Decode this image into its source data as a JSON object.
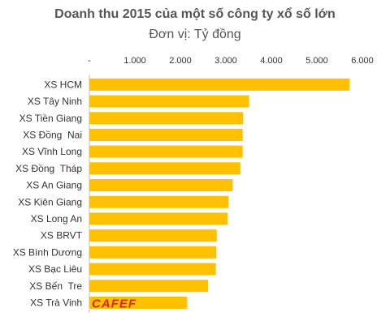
{
  "chart_data": {
    "type": "bar",
    "orientation": "horizontal",
    "title": "Doanh thu 2015 của một số công ty xổ số lớn",
    "subtitle": "Đơn vị: Tỷ đồng",
    "categories": [
      "XS HCM",
      "XS Tây Ninh",
      "XS Tiền Giang",
      "XS Đồng  Nai",
      "XS Vĩnh Long",
      "XS Đồng  Tháp",
      "XS An Giang",
      "XS Kiên Giang",
      "XS Long An",
      "XS BRVT",
      "XS Bình Dương",
      "XS Bạc Liêu",
      "XS Bến  Tre",
      "XS Trà Vinh"
    ],
    "values": [
      5720,
      3510,
      3380,
      3370,
      3370,
      3320,
      3150,
      3060,
      3040,
      2800,
      2790,
      2780,
      2610,
      2150
    ],
    "xlim": [
      0,
      6000
    ],
    "x_tick_labels": [
      "-",
      "1.000",
      "2.000",
      "3.000",
      "4.000",
      "5.000",
      "6.000"
    ],
    "grid": false,
    "colors": {
      "bar": "#FFC000",
      "text": "#333333",
      "title": "#555555",
      "axis": "#BFBFBF"
    },
    "watermark": "CAFEF"
  }
}
